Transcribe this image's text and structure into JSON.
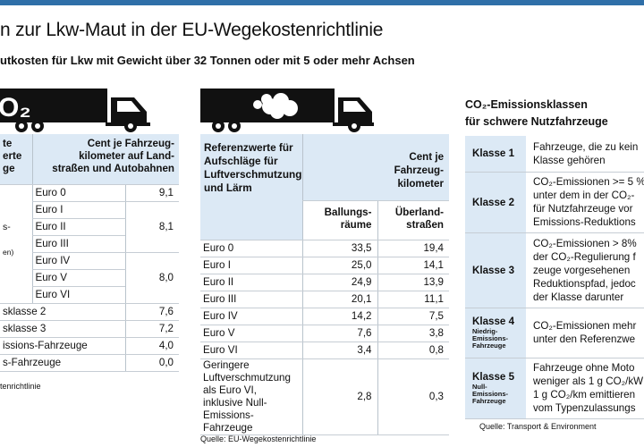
{
  "header": {
    "title": "n zur Lkw-Maut in der EU-Wegekostenrichtlinie",
    "subtitle": "utkosten für Lkw mit Gewicht über 32 Tonnen oder mit 5 oder mehr Achsen"
  },
  "colors": {
    "accent": "#2f6fa8",
    "header_fill": "#dce9f5",
    "truck": "#111111"
  },
  "table1": {
    "truck_label": "O₂",
    "head_left": [
      "te",
      "erte",
      "ge"
    ],
    "head_right": [
      "Cent je Fahrzeug-",
      "kilometer auf Land-",
      "straßen und Autobahnen"
    ],
    "side_text": [
      "s-",
      "en)"
    ],
    "rows": [
      {
        "label": "Euro 0",
        "value": "9,1"
      },
      {
        "label": "Euro I",
        "value": ""
      },
      {
        "label": "Euro II",
        "value": "8,1"
      },
      {
        "label": "Euro III",
        "value": ""
      },
      {
        "label": "Euro IV",
        "value": ""
      },
      {
        "label": "Euro V",
        "value": "8,0"
      },
      {
        "label": "Euro VI",
        "value": ""
      },
      {
        "label": "sklasse 2",
        "value": "7,6"
      },
      {
        "label": "sklasse 3",
        "value": "7,2"
      },
      {
        "label": "issions-Fahrzeuge",
        "value": "4,0"
      },
      {
        "label": "s-Fahrzeuge",
        "value": "0,0"
      }
    ],
    "source": "tenrichtlinie"
  },
  "table2": {
    "head_left": "Referenzwerte für Aufschläge für Luftverschmutzung und Lärm",
    "head_right": "Cent je Fahrzeug-kilometer",
    "col1": "Ballungs-räume",
    "col2": "Überland-straßen",
    "rows": [
      {
        "label": "Euro 0",
        "v1": "33,5",
        "v2": "19,4"
      },
      {
        "label": "Euro I",
        "v1": "25,0",
        "v2": "14,1"
      },
      {
        "label": "Euro II",
        "v1": "24,9",
        "v2": "13,9"
      },
      {
        "label": "Euro III",
        "v1": "20,1",
        "v2": "11,1"
      },
      {
        "label": "Euro IV",
        "v1": "14,2",
        "v2": "7,5"
      },
      {
        "label": "Euro V",
        "v1": "7,6",
        "v2": "3,8"
      },
      {
        "label": "Euro VI",
        "v1": "3,4",
        "v2": "0,8"
      }
    ],
    "last_row": {
      "label": "Geringere Luftverschmutzung als Euro VI, inklusive Null-Emissions-Fahrzeuge",
      "v1": "2,8",
      "v2": "0,3"
    },
    "source": "Quelle: EU-Wegekostenrichtlinie"
  },
  "table3": {
    "heading_line1": "CO₂-Emissionsklassen",
    "heading_line2": "für schwere Nutzfahrzeuge",
    "rows": [
      {
        "klasse": "Klasse 1",
        "sub": "",
        "lines": [
          "Fahrzeuge, die zu kein",
          "Klasse gehören"
        ]
      },
      {
        "klasse": "Klasse 2",
        "sub": "",
        "lines": [
          "CO₂-Emissionen >= 5 %",
          "unter dem in der CO₂-",
          "für Nutzfahrzeuge vor",
          "Emissions-Reduktions"
        ]
      },
      {
        "klasse": "Klasse 3",
        "sub": "",
        "lines": [
          "CO₂-Emissionen > 8%",
          "der CO₂-Regulierung f",
          "zeuge vorgesehenen",
          "Reduktionspfad, jedoc",
          "der Klasse darunter"
        ]
      },
      {
        "klasse": "Klasse 4",
        "sub": "Niedrig-Emissions-Fahrzeuge",
        "lines": [
          "CO₂-Emissionen mehr",
          "unter den Referenzwe"
        ]
      },
      {
        "klasse": "Klasse 5",
        "sub": "Null-Emissions-Fahrzeuge",
        "lines": [
          "Fahrzeuge ohne Moto",
          "weniger als 1 g CO₂/kW",
          "1 g CO₂/km emittieren",
          "vom Typenzulassungs"
        ]
      }
    ],
    "source": "Quelle: Transport & Environment"
  }
}
